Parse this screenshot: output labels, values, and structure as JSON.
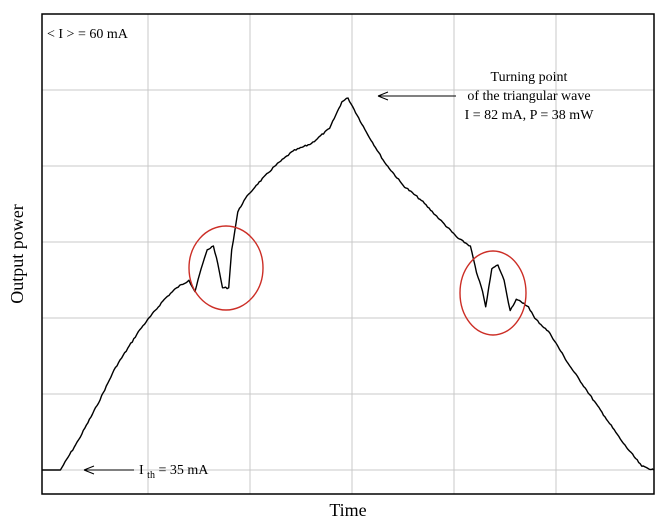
{
  "chart_data": {
    "type": "line",
    "title": "",
    "xlabel": "Time",
    "ylabel": "Output power",
    "grid": true,
    "xlim": [
      0,
      100
    ],
    "ylim": [
      0,
      100
    ],
    "series": [
      {
        "name": "",
        "x": [
          0,
          3,
          6,
          9,
          12,
          16,
          20,
          22,
          24,
          25,
          26,
          27,
          28,
          28.5,
          29.5,
          30.5,
          31,
          32,
          33,
          34,
          35,
          38,
          41,
          44,
          47,
          49,
          50,
          51,
          53,
          56,
          59,
          62,
          65,
          68,
          70,
          71,
          72,
          72.5,
          73.5,
          74.5,
          75.5,
          76.5,
          77.5,
          78.5,
          79.5,
          80.5,
          83,
          86,
          89,
          92,
          95,
          98,
          100
        ],
        "y": [
          0,
          0,
          8,
          17,
          27,
          37,
          45,
          48,
          50,
          47,
          53,
          58,
          59,
          56,
          48,
          48,
          58,
          68,
          71,
          73,
          75,
          80,
          84,
          86,
          90,
          97,
          98,
          95,
          89,
          81,
          75,
          71,
          66,
          61,
          59,
          52,
          47,
          43,
          53,
          54,
          50,
          42,
          45,
          44,
          43,
          40,
          36,
          28,
          21,
          14,
          7,
          1,
          0
        ]
      }
    ],
    "annotations": {
      "mean_current": "< I > = 60 mA",
      "turning_point": [
        "Turning point",
        "of the triangular wave",
        "I = 82 mA, P = 38 mW"
      ],
      "threshold_prefix": "I",
      "threshold_sub": "th",
      "threshold_value": " = 35 mA"
    },
    "colors": {
      "line": "#000000",
      "circles": "#cc2e26",
      "grid": "#c8c8c8"
    }
  }
}
